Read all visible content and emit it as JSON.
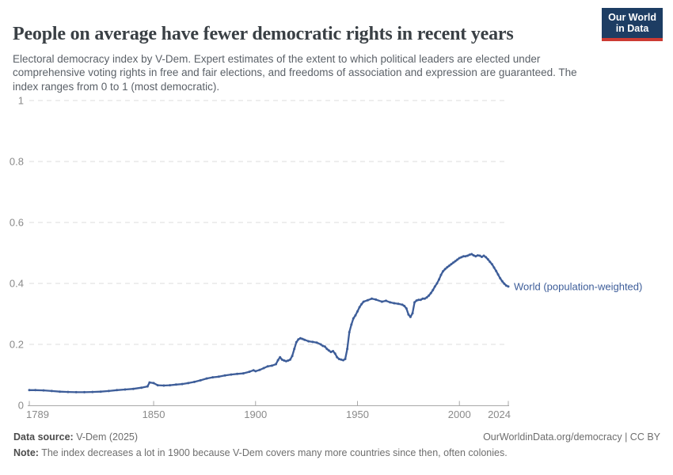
{
  "header": {
    "title": "People on average have fewer democratic rights in recent years",
    "subtitle": "Electoral democracy index by V-Dem. Expert estimates of the extent to which political leaders are elected under comprehensive voting rights in free and fair elections, and freedoms of association and expression are guaranteed. The index ranges from 0 to 1 (most democratic).",
    "logo": {
      "line1": "Our World",
      "line2": "in Data"
    }
  },
  "chart_data": {
    "type": "line",
    "title": "People on average have fewer democratic rights in recent years",
    "xlabel": "",
    "ylabel": "",
    "xlim": [
      1789,
      2024
    ],
    "ylim": [
      0,
      1
    ],
    "x_ticks": [
      1789,
      1850,
      1900,
      1950,
      2000,
      2024
    ],
    "y_ticks": [
      0,
      0.2,
      0.4,
      0.6,
      0.8,
      1
    ],
    "grid": "horizontal-dashed",
    "legend_position": "end-of-line",
    "colors": {
      "line": "#3d5d99",
      "grid": "#dcdcdc",
      "axis": "#a8a8a8",
      "tick_text": "#8a8a8a"
    },
    "series": [
      {
        "name": "World (population-weighted)",
        "points": [
          [
            1789,
            0.05
          ],
          [
            1792,
            0.05
          ],
          [
            1796,
            0.049
          ],
          [
            1800,
            0.047
          ],
          [
            1804,
            0.045
          ],
          [
            1808,
            0.044
          ],
          [
            1812,
            0.043
          ],
          [
            1816,
            0.043
          ],
          [
            1820,
            0.044
          ],
          [
            1824,
            0.045
          ],
          [
            1828,
            0.047
          ],
          [
            1832,
            0.05
          ],
          [
            1836,
            0.052
          ],
          [
            1840,
            0.054
          ],
          [
            1844,
            0.058
          ],
          [
            1847,
            0.062
          ],
          [
            1848,
            0.075
          ],
          [
            1850,
            0.073
          ],
          [
            1852,
            0.066
          ],
          [
            1855,
            0.065
          ],
          [
            1858,
            0.066
          ],
          [
            1861,
            0.068
          ],
          [
            1864,
            0.07
          ],
          [
            1867,
            0.073
          ],
          [
            1870,
            0.077
          ],
          [
            1873,
            0.082
          ],
          [
            1876,
            0.088
          ],
          [
            1879,
            0.092
          ],
          [
            1882,
            0.094
          ],
          [
            1885,
            0.098
          ],
          [
            1888,
            0.101
          ],
          [
            1891,
            0.103
          ],
          [
            1894,
            0.105
          ],
          [
            1897,
            0.11
          ],
          [
            1899,
            0.115
          ],
          [
            1900,
            0.112
          ],
          [
            1902,
            0.116
          ],
          [
            1904,
            0.122
          ],
          [
            1906,
            0.128
          ],
          [
            1908,
            0.13
          ],
          [
            1910,
            0.135
          ],
          [
            1911,
            0.148
          ],
          [
            1912,
            0.158
          ],
          [
            1913,
            0.15
          ],
          [
            1914,
            0.147
          ],
          [
            1915,
            0.145
          ],
          [
            1916,
            0.147
          ],
          [
            1917,
            0.15
          ],
          [
            1918,
            0.162
          ],
          [
            1919,
            0.185
          ],
          [
            1920,
            0.207
          ],
          [
            1921,
            0.216
          ],
          [
            1922,
            0.22
          ],
          [
            1923,
            0.218
          ],
          [
            1924,
            0.215
          ],
          [
            1926,
            0.21
          ],
          [
            1928,
            0.208
          ],
          [
            1930,
            0.206
          ],
          [
            1932,
            0.2
          ],
          [
            1933,
            0.195
          ],
          [
            1934,
            0.193
          ],
          [
            1935,
            0.185
          ],
          [
            1936,
            0.18
          ],
          [
            1937,
            0.175
          ],
          [
            1938,
            0.178
          ],
          [
            1939,
            0.17
          ],
          [
            1940,
            0.158
          ],
          [
            1941,
            0.152
          ],
          [
            1942,
            0.15
          ],
          [
            1943,
            0.148
          ],
          [
            1944,
            0.152
          ],
          [
            1945,
            0.185
          ],
          [
            1946,
            0.24
          ],
          [
            1947,
            0.265
          ],
          [
            1948,
            0.285
          ],
          [
            1949,
            0.295
          ],
          [
            1950,
            0.308
          ],
          [
            1951,
            0.322
          ],
          [
            1952,
            0.332
          ],
          [
            1953,
            0.34
          ],
          [
            1955,
            0.345
          ],
          [
            1957,
            0.35
          ],
          [
            1959,
            0.347
          ],
          [
            1962,
            0.34
          ],
          [
            1964,
            0.343
          ],
          [
            1966,
            0.338
          ],
          [
            1968,
            0.335
          ],
          [
            1970,
            0.333
          ],
          [
            1972,
            0.33
          ],
          [
            1973,
            0.326
          ],
          [
            1974,
            0.318
          ],
          [
            1975,
            0.298
          ],
          [
            1976,
            0.29
          ],
          [
            1977,
            0.302
          ],
          [
            1978,
            0.338
          ],
          [
            1979,
            0.344
          ],
          [
            1980,
            0.346
          ],
          [
            1981,
            0.346
          ],
          [
            1982,
            0.35
          ],
          [
            1983,
            0.35
          ],
          [
            1984,
            0.354
          ],
          [
            1985,
            0.36
          ],
          [
            1986,
            0.368
          ],
          [
            1987,
            0.378
          ],
          [
            1988,
            0.39
          ],
          [
            1989,
            0.4
          ],
          [
            1990,
            0.413
          ],
          [
            1991,
            0.428
          ],
          [
            1992,
            0.44
          ],
          [
            1993,
            0.447
          ],
          [
            1994,
            0.453
          ],
          [
            1995,
            0.458
          ],
          [
            1996,
            0.463
          ],
          [
            1997,
            0.468
          ],
          [
            1998,
            0.473
          ],
          [
            1999,
            0.478
          ],
          [
            2000,
            0.483
          ],
          [
            2001,
            0.486
          ],
          [
            2002,
            0.489
          ],
          [
            2003,
            0.489
          ],
          [
            2004,
            0.491
          ],
          [
            2005,
            0.494
          ],
          [
            2006,
            0.496
          ],
          [
            2007,
            0.492
          ],
          [
            2008,
            0.489
          ],
          [
            2009,
            0.492
          ],
          [
            2010,
            0.491
          ],
          [
            2011,
            0.487
          ],
          [
            2012,
            0.491
          ],
          [
            2013,
            0.486
          ],
          [
            2014,
            0.479
          ],
          [
            2015,
            0.471
          ],
          [
            2016,
            0.463
          ],
          [
            2017,
            0.452
          ],
          [
            2018,
            0.441
          ],
          [
            2019,
            0.429
          ],
          [
            2020,
            0.417
          ],
          [
            2021,
            0.407
          ],
          [
            2022,
            0.399
          ],
          [
            2023,
            0.393
          ],
          [
            2024,
            0.39
          ]
        ]
      }
    ]
  },
  "footer": {
    "source_label": "Data source:",
    "source_value": " V-Dem (2025)",
    "link": "OurWorldinData.org/democracy | CC BY",
    "note_label": "Note:",
    "note_text": " The index decreases a lot in 1900 because V-Dem covers many more countries since then, often colonies."
  }
}
